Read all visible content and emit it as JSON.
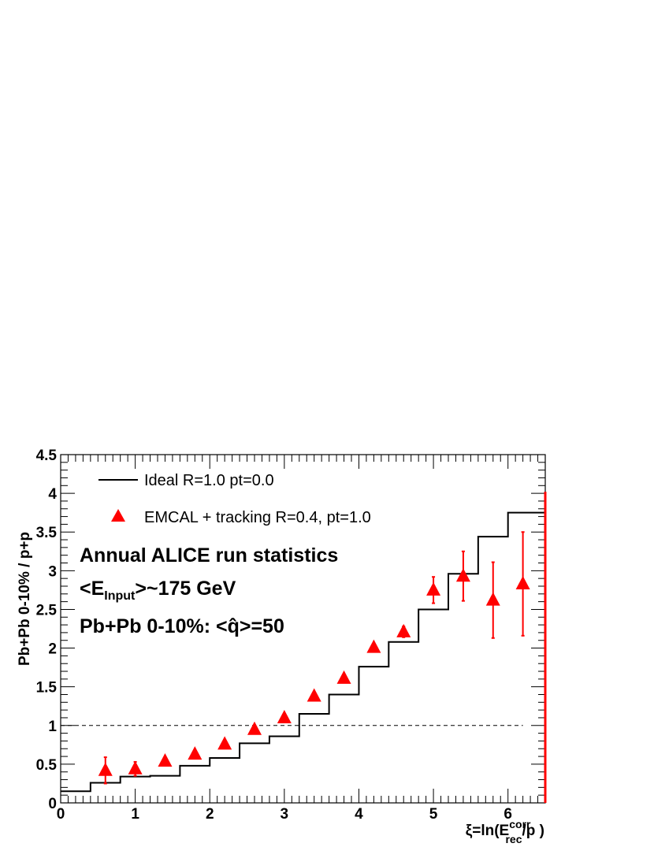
{
  "colors": {
    "step": "#000000",
    "points": "#ff0000",
    "reference": "#000000"
  },
  "icons": {
    "legend_line": "solid-line-icon",
    "legend_marker": "red-triangle-icon"
  },
  "chart_data": {
    "type": "line",
    "xlabel": {
      "main": "ξ=ln(E",
      "sup": "corr",
      "sub": "rec",
      "tail": "/p )"
    },
    "ylabel": "Pb+Pb 0-10% / p+p",
    "xlim": [
      0,
      6.5
    ],
    "ylim": [
      0,
      4.5
    ],
    "x_ticks": [
      "0",
      "1",
      "2",
      "3",
      "4",
      "5",
      "6"
    ],
    "y_ticks": [
      "0",
      "0.5",
      "1",
      "1.5",
      "2",
      "2.5",
      "3",
      "3.5",
      "4",
      "4.5"
    ],
    "reference_line": {
      "y": 1.0,
      "x": [
        0,
        6.2
      ],
      "style": "dashed"
    },
    "legend": {
      "placement": "top-left",
      "entries": [
        "Ideal R=1.0 pt=0.0",
        "EMCAL + tracking R=0.4, pt=1.0"
      ]
    },
    "annotations": [
      {
        "text": "Annual ALICE run statistics"
      },
      {
        "pre": "<E",
        "sub": "Input",
        "post": ">~175 GeV"
      },
      {
        "pre": "Pb+Pb 0-10%: <",
        "hat": "q̂",
        "post": ">=50"
      }
    ],
    "series": [
      {
        "name": "Ideal R=1.0 pt=0.0",
        "kind": "step",
        "bin_edges": [
          0,
          0.4,
          0.8,
          1.2,
          1.6,
          2.0,
          2.4,
          2.8,
          3.2,
          3.6,
          4.0,
          4.4,
          4.8,
          5.2,
          5.6,
          6.0,
          6.5
        ],
        "values": [
          0.15,
          0.26,
          0.34,
          0.35,
          0.48,
          0.58,
          0.77,
          0.86,
          1.15,
          1.4,
          1.76,
          2.08,
          2.5,
          2.96,
          3.44,
          3.75
        ]
      },
      {
        "name": "EMCAL + tracking R=0.4, pt=1.0",
        "kind": "scatter",
        "marker": "triangle",
        "x": [
          0.6,
          1.0,
          1.4,
          1.8,
          2.2,
          2.6,
          3.0,
          3.4,
          3.8,
          4.2,
          4.6,
          5.0,
          5.4,
          5.8,
          6.2
        ],
        "y": [
          0.42,
          0.44,
          0.54,
          0.63,
          0.76,
          0.95,
          1.1,
          1.38,
          1.61,
          2.01,
          2.21,
          2.75,
          2.93,
          2.62,
          2.83
        ],
        "err": [
          0.17,
          0.09,
          0.03,
          0.03,
          0.03,
          0.03,
          0.03,
          0.03,
          0.03,
          0.03,
          0.07,
          0.17,
          0.32,
          0.49,
          0.67
        ]
      }
    ]
  }
}
